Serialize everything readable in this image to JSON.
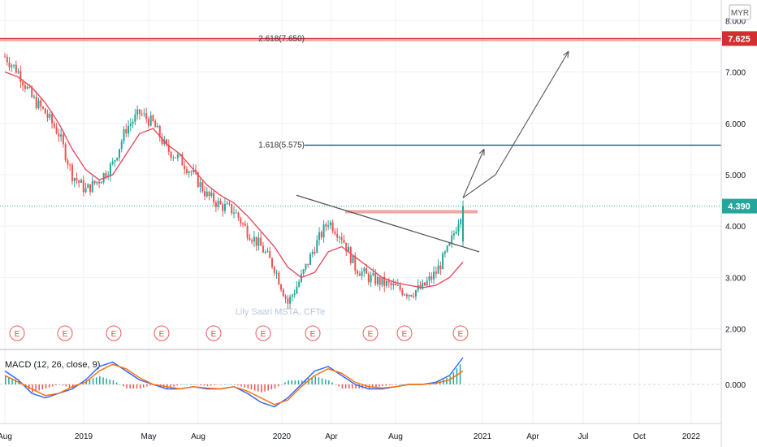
{
  "chart_data": {
    "type": "candlestick",
    "currency": "MYR",
    "watermark": "Lily Saari  MSTA, CFTe",
    "price_axis": {
      "ticks": [
        "8.000",
        "7.000",
        "6.000",
        "5.000",
        "4.000",
        "3.000",
        "2.000"
      ],
      "tick_values": [
        8,
        7,
        6,
        5,
        4,
        3,
        2
      ],
      "range": [
        1.6,
        8.4
      ]
    },
    "time_axis": {
      "labels": [
        "Aug",
        "2019",
        "May",
        "Aug",
        "2020",
        "Apr",
        "Aug",
        "2021",
        "Apr",
        "Jul",
        "Oct",
        "2022"
      ]
    },
    "last_price": {
      "label": "4.390",
      "value": 4.39
    },
    "fib_levels": [
      {
        "label": "2.618(7.650)",
        "value": 7.65,
        "badge": "7.625",
        "color": "#d32f2f"
      },
      {
        "label": "1.618(5.575)",
        "value": 5.575,
        "color": "#0d3b8c"
      }
    ],
    "resistance_zones": [
      {
        "value": 7.63,
        "color": "#f4a5a5"
      },
      {
        "value": 4.28,
        "color": "#f4a5a5"
      }
    ],
    "trendline": {
      "from_value": 4.6,
      "to_value": 3.5
    },
    "earnings_marker": "E",
    "earnings_count": 10,
    "price_series": [
      7.3,
      7.0,
      6.5,
      6.2,
      5.8,
      5.0,
      4.7,
      4.9,
      5.2,
      5.9,
      6.2,
      6.0,
      5.5,
      5.3,
      5.0,
      4.6,
      4.4,
      4.3,
      3.9,
      3.6,
      3.2,
      2.5,
      3.0,
      3.6,
      4.1,
      3.8,
      3.2,
      3.0,
      2.9,
      2.8,
      2.7,
      2.8,
      3.1,
      3.6,
      4.39
    ],
    "ma_series": [
      7.0,
      6.9,
      6.7,
      6.4,
      6.0,
      5.5,
      5.1,
      4.9,
      5.0,
      5.4,
      5.8,
      5.9,
      5.6,
      5.4,
      5.1,
      4.8,
      4.6,
      4.45,
      4.2,
      3.9,
      3.6,
      3.2,
      3.0,
      3.1,
      3.5,
      3.6,
      3.4,
      3.2,
      3.0,
      2.9,
      2.85,
      2.8,
      2.85,
      3.0,
      3.3
    ],
    "projection": {
      "mid_value": 5.5,
      "target_value": 7.4
    },
    "macd": {
      "title": "MACD (12, 26, close, 9)",
      "zero_label": "0.000",
      "macd_line": [
        0.3,
        0.1,
        -0.2,
        -0.3,
        -0.2,
        -0.1,
        0.1,
        0.4,
        0.5,
        0.3,
        0.1,
        0.0,
        -0.1,
        -0.1,
        -0.05,
        -0.1,
        -0.1,
        -0.05,
        -0.2,
        -0.4,
        -0.5,
        -0.3,
        0.0,
        0.3,
        0.4,
        0.2,
        0.0,
        -0.1,
        -0.1,
        -0.05,
        0.0,
        0.0,
        0.05,
        0.2,
        0.6
      ],
      "signal_line": [
        0.2,
        0.05,
        -0.1,
        -0.25,
        -0.2,
        -0.05,
        0.05,
        0.3,
        0.45,
        0.35,
        0.15,
        0.0,
        -0.05,
        -0.1,
        -0.05,
        -0.08,
        -0.1,
        -0.05,
        -0.15,
        -0.3,
        -0.45,
        -0.35,
        -0.05,
        0.2,
        0.35,
        0.25,
        0.05,
        -0.05,
        -0.08,
        -0.05,
        0.0,
        0.0,
        0.03,
        0.1,
        0.3
      ]
    },
    "colors": {
      "up": "#26a69a",
      "down": "#ef5350",
      "ma": "#e84a5f",
      "macd": "#2962ff",
      "signal": "#ff6d00",
      "grid": "#eef1f5",
      "last_price": "#26a69a",
      "projection": "#555555"
    }
  }
}
